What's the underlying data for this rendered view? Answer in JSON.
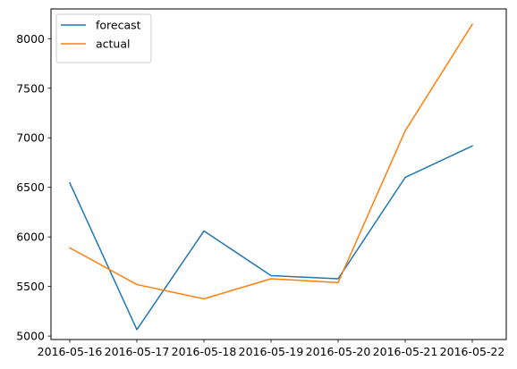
{
  "chart_data": {
    "type": "line",
    "x": [
      "2016-05-16",
      "2016-05-17",
      "2016-05-18",
      "2016-05-19",
      "2016-05-20",
      "2016-05-21",
      "2016-05-22"
    ],
    "series": [
      {
        "name": "forecast",
        "color": "#1f77b4",
        "values": [
          6545,
          5065,
          6060,
          5610,
          5578,
          6600,
          6918
        ]
      },
      {
        "name": "actual",
        "color": "#ff7f0e",
        "values": [
          5890,
          5520,
          5375,
          5578,
          5540,
          7070,
          8145
        ]
      }
    ],
    "yticks": [
      5000,
      5500,
      6000,
      6500,
      7000,
      7500,
      8000
    ],
    "ylim": [
      4965,
      8300
    ],
    "title": "",
    "xlabel": "",
    "ylabel": "",
    "grid": false,
    "legend_position": "top-left"
  }
}
